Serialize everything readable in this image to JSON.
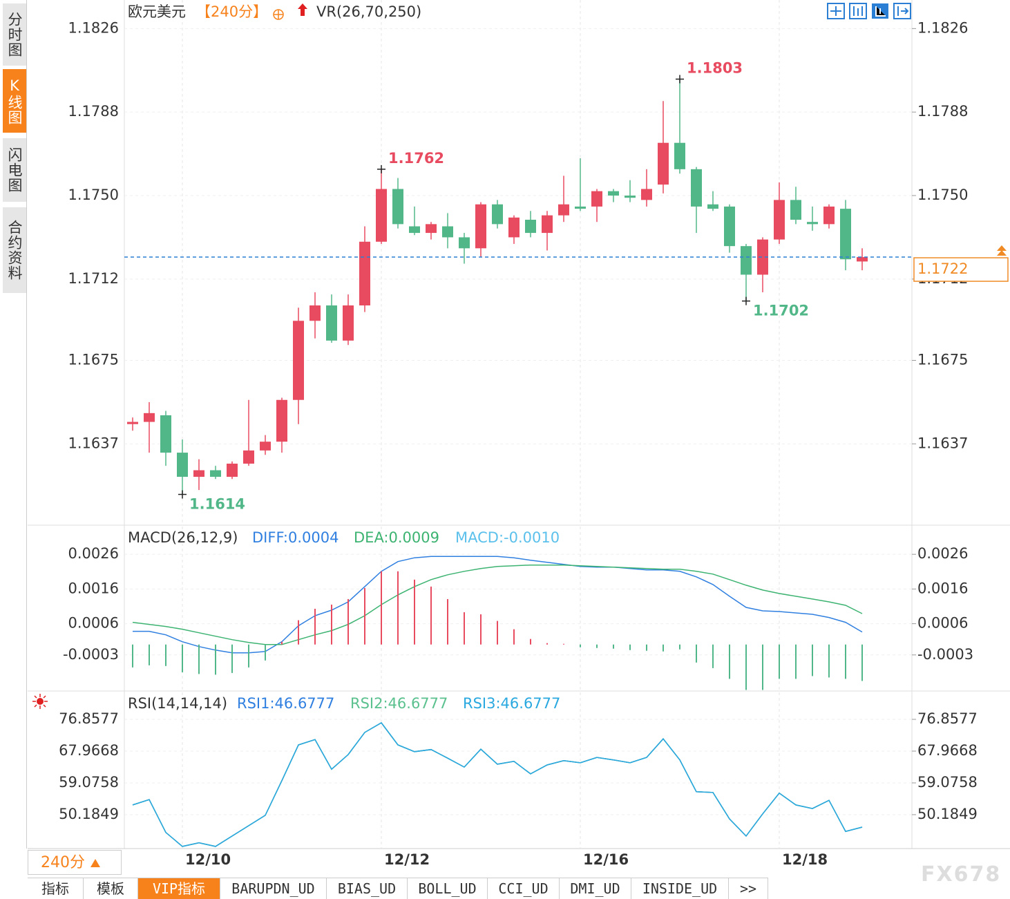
{
  "sidebar_tabs": [
    "分时图",
    "K线图",
    "闪电图",
    "合约资料"
  ],
  "sidebar_active": 1,
  "chart_data": [
    {
      "type": "candlestick",
      "title": "欧元美元",
      "period": "【240分】",
      "indicator": "VR(26,70,250)",
      "categories": [
        null,
        null,
        null,
        "12/10",
        null,
        null,
        null,
        null,
        null,
        null,
        null,
        null,
        null,
        null,
        null,
        "12/12",
        null,
        null,
        null,
        null,
        null,
        null,
        null,
        null,
        null,
        null,
        null,
        "12/16",
        null,
        null,
        null,
        null,
        null,
        null,
        null,
        null,
        null,
        null,
        null,
        "12/18",
        null,
        null,
        null,
        null,
        null
      ],
      "open": [
        1.1646,
        1.1647,
        1.165,
        1.1633,
        1.1622,
        1.1625,
        1.1622,
        1.1628,
        1.1634,
        1.1638,
        1.1657,
        1.1693,
        1.17,
        1.1684,
        1.17,
        1.1729,
        1.1753,
        1.1736,
        1.1733,
        1.1736,
        1.1731,
        1.1726,
        1.1746,
        1.1731,
        1.1739,
        1.1733,
        1.1741,
        1.1745,
        1.1745,
        1.1752,
        1.175,
        1.1748,
        1.1755,
        1.1774,
        1.1762,
        1.1746,
        1.1745,
        1.1727,
        1.1714,
        1.173,
        1.1748,
        1.1738,
        1.1737,
        1.1744,
        1.172
      ],
      "high": [
        1.1649,
        1.1656,
        1.1652,
        1.1639,
        1.163,
        1.1627,
        1.1629,
        1.1657,
        1.1641,
        1.1658,
        1.1699,
        1.1706,
        1.1705,
        1.1705,
        1.1736,
        1.1762,
        1.1758,
        1.1745,
        1.1738,
        1.1742,
        1.1733,
        1.1747,
        1.1748,
        1.1741,
        1.1743,
        1.1743,
        1.1759,
        1.1767,
        1.1753,
        1.1753,
        1.1757,
        1.1762,
        1.1793,
        1.1803,
        1.1763,
        1.1752,
        1.1746,
        1.1728,
        1.1731,
        1.1756,
        1.1754,
        1.1745,
        1.1746,
        1.1748,
        1.1726
      ],
      "low": [
        1.1643,
        1.1633,
        1.1627,
        1.1614,
        1.1616,
        1.1621,
        1.1621,
        1.1627,
        1.1632,
        1.1633,
        1.1646,
        1.1685,
        1.1683,
        1.1682,
        1.1697,
        1.1728,
        1.1735,
        1.1732,
        1.173,
        1.1726,
        1.1719,
        1.1722,
        1.1735,
        1.1728,
        1.1731,
        1.1725,
        1.1738,
        1.1743,
        1.1738,
        1.1747,
        1.1747,
        1.1745,
        1.1751,
        1.176,
        1.1733,
        1.1743,
        1.1724,
        1.1702,
        1.1706,
        1.1728,
        1.1737,
        1.1734,
        1.1735,
        1.1716,
        1.1716
      ],
      "close": [
        1.1647,
        1.1651,
        1.1633,
        1.1622,
        1.1625,
        1.1622,
        1.1628,
        1.1634,
        1.1638,
        1.1657,
        1.1693,
        1.17,
        1.1684,
        1.17,
        1.1729,
        1.1753,
        1.1737,
        1.1733,
        1.1737,
        1.1731,
        1.1726,
        1.1746,
        1.1737,
        1.174,
        1.1733,
        1.1741,
        1.1746,
        1.1744,
        1.1752,
        1.175,
        1.1749,
        1.1753,
        1.1774,
        1.1762,
        1.1745,
        1.1744,
        1.1727,
        1.1714,
        1.173,
        1.1748,
        1.1739,
        1.1737,
        1.1745,
        1.1721,
        1.1722
      ],
      "up_color": "#e84a5f",
      "down_color": "#52b788",
      "ylim": [
        1.16,
        1.1839
      ],
      "yticks": [
        1.1826,
        1.1788,
        {
          "value": 1.175,
          "label": "1.1750"
        },
        1.1712,
        1.1675,
        1.1637
      ],
      "grid": true,
      "annotations": [
        {
          "at": 15,
          "value": 1.1762,
          "color": "#e84a5f"
        },
        {
          "at": 33,
          "value": 1.1803,
          "color": "#e84a5f"
        },
        {
          "at": 3,
          "value": 1.1614,
          "color": "#52b788"
        },
        {
          "at": 37,
          "value": 1.1702,
          "color": "#52b788"
        }
      ],
      "last_price": 1.1722,
      "last_price_color": "#f08a24"
    },
    {
      "type": "macd",
      "legend": "MACD(26,12,9)",
      "series": [
        {
          "name": "DIFF:0.0004",
          "color": "#2f7fe0",
          "values": [
            0.00038,
            0.00038,
            0.00028,
            8e-05,
            -6e-05,
            -0.00016,
            -0.00024,
            -0.00024,
            -0.0002,
            8e-05,
            0.00054,
            0.00083,
            0.00099,
            0.00123,
            0.00167,
            0.00211,
            0.00239,
            0.0025,
            0.00254,
            0.00254,
            0.00254,
            0.00254,
            0.00254,
            0.0025,
            0.00243,
            0.00237,
            0.00231,
            0.00225,
            0.00223,
            0.00223,
            0.00219,
            0.00215,
            0.00215,
            0.00211,
            0.00195,
            0.00173,
            0.00139,
            0.00107,
            0.00097,
            0.00095,
            0.00091,
            0.00087,
            0.00078,
            0.00064,
            0.00036
          ]
        },
        {
          "name": "DEA:0.0009",
          "color": "#3cb371",
          "values": [
            0.00064,
            0.00058,
            0.00052,
            0.00044,
            0.00034,
            0.00024,
            0.00014,
            6e-05,
            0,
            0,
            0.00014,
            0.00028,
            0.0004,
            0.00058,
            0.00083,
            0.00115,
            0.00143,
            0.00167,
            0.00187,
            0.00201,
            0.00211,
            0.00219,
            0.00225,
            0.00227,
            0.00229,
            0.00229,
            0.00229,
            0.00227,
            0.00225,
            0.00223,
            0.00221,
            0.00219,
            0.00217,
            0.00217,
            0.00211,
            0.00203,
            0.00187,
            0.00171,
            0.00157,
            0.00147,
            0.00139,
            0.00131,
            0.00123,
            0.00113,
            0.00089
          ]
        },
        {
          "name": "MACD:-0.0010",
          "color": "#5bc0eb",
          "style": "histogram",
          "up_color": "#e84a5f",
          "down_color": "#52b788",
          "values": [
            -0.00066,
            -0.0006,
            -0.00062,
            -0.0008,
            -0.00085,
            -0.00087,
            -0.00082,
            -0.00066,
            -0.00046,
            8e-05,
            0.0007,
            0.00103,
            0.00115,
            0.00131,
            0.00163,
            0.00211,
            0.00211,
            0.00187,
            0.00167,
            0.00131,
            0.00093,
            0.00087,
            0.00068,
            0.00044,
            0.00016,
            4e-05,
            2e-05,
            -8e-05,
            -0.0001,
            -0.00012,
            -0.00016,
            -0.00018,
            -0.0002,
            -0.00014,
            -0.00052,
            -0.00068,
            -0.00099,
            -0.00131,
            -0.00131,
            -0.00099,
            -0.00099,
            -0.00091,
            -0.00095,
            -0.00099,
            -0.00105
          ]
        }
      ],
      "ylim": [
        -0.0013,
        0.0034
      ],
      "yticks": [
        0.0026,
        0.0016,
        0.0006,
        -0.0003
      ]
    },
    {
      "type": "line",
      "legend": "RSI(14,14,14)",
      "series": [
        {
          "name": "RSI1:46.6777",
          "color": "#2f7fe0",
          "values": [
            52.9,
            54.4,
            45.2,
            41.3,
            42.3,
            41.3,
            44.2,
            47.1,
            50.0,
            59.7,
            69.7,
            71.2,
            62.9,
            67.0,
            73.2,
            75.9,
            69.7,
            67.8,
            68.4,
            66.0,
            63.5,
            68.5,
            64.3,
            65.1,
            61.6,
            64.1,
            65.3,
            64.7,
            66.2,
            65.5,
            64.7,
            66.2,
            71.4,
            65.5,
            56.6,
            56.4,
            49.0,
            44.2,
            50.4,
            56.2,
            52.9,
            51.9,
            54.2,
            45.5,
            46.7
          ]
        },
        {
          "name": "RSI2:46.6777",
          "color": "#5ac18e",
          "values": [
            52.9,
            54.4,
            45.2,
            41.3,
            42.3,
            41.3,
            44.2,
            47.1,
            50.0,
            59.7,
            69.7,
            71.2,
            62.9,
            67.0,
            73.2,
            75.9,
            69.7,
            67.8,
            68.4,
            66.0,
            63.5,
            68.5,
            64.3,
            65.1,
            61.6,
            64.1,
            65.3,
            64.7,
            66.2,
            65.5,
            64.7,
            66.2,
            71.4,
            65.5,
            56.6,
            56.4,
            49.0,
            44.2,
            50.4,
            56.2,
            52.9,
            51.9,
            54.2,
            45.5,
            46.7
          ]
        },
        {
          "name": "RSI3:46.6777",
          "color": "#29a8e0",
          "values": [
            52.9,
            54.4,
            45.2,
            41.3,
            42.3,
            41.3,
            44.2,
            47.1,
            50.0,
            59.7,
            69.7,
            71.2,
            62.9,
            67.0,
            73.2,
            75.9,
            69.7,
            67.8,
            68.4,
            66.0,
            63.5,
            68.5,
            64.3,
            65.1,
            61.6,
            64.1,
            65.3,
            64.7,
            66.2,
            65.5,
            64.7,
            66.2,
            71.4,
            65.5,
            56.6,
            56.4,
            49.0,
            44.2,
            50.4,
            56.2,
            52.9,
            51.9,
            54.2,
            45.5,
            46.7
          ]
        }
      ],
      "ylim": [
        40.7,
        84.4
      ],
      "yticks": [
        76.8577,
        67.9668,
        59.0758,
        50.1849
      ]
    }
  ],
  "period_button": "240分",
  "tabs": [
    "指标",
    "模板",
    "VIP指标",
    "BARUPDN_UD",
    "BIAS_UD",
    "BOLL_UD",
    "CCI_UD",
    "DMI_UD",
    "INSIDE_UD",
    ">>"
  ],
  "active_tab": 2,
  "watermark": "FX678"
}
